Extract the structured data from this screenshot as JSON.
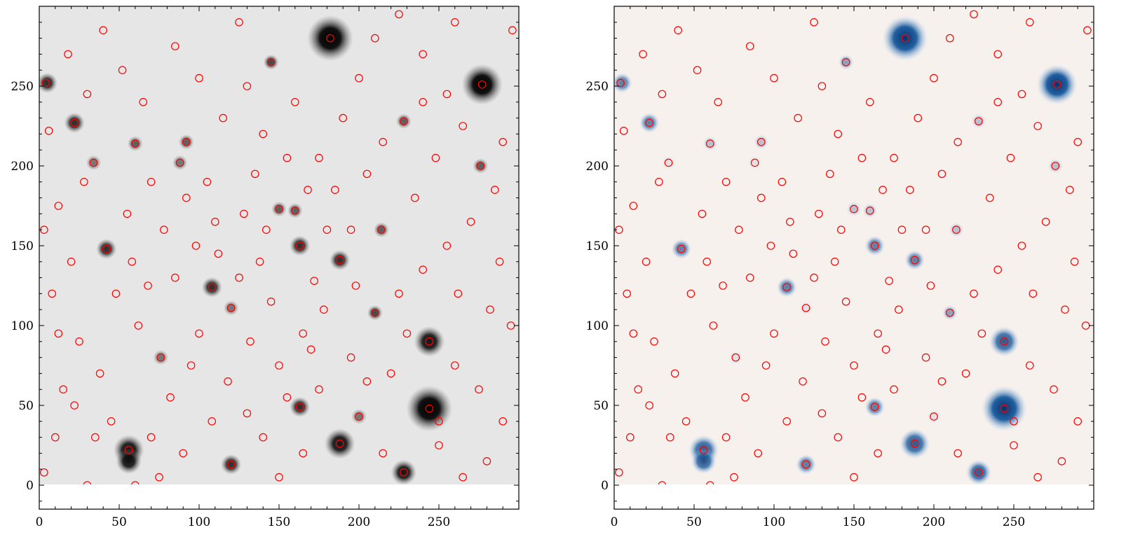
{
  "chart_data": [
    {
      "type": "scatter",
      "panel": "left",
      "background": "image",
      "colormap": "gray_r",
      "xlim": [
        0,
        300
      ],
      "ylim": [
        -15,
        300
      ],
      "xticks": [
        "0",
        "50",
        "100",
        "150",
        "200",
        "250"
      ],
      "yticks": [
        "0",
        "50",
        "100",
        "150",
        "200",
        "250"
      ],
      "marker": "open-circle",
      "marker_color": "#ff0000",
      "grid": false
    },
    {
      "type": "scatter",
      "panel": "right",
      "background": "image",
      "colormap": "RdBu_r-like blue",
      "xlim": [
        0,
        300
      ],
      "ylim": [
        -15,
        300
      ],
      "xticks": [
        "0",
        "50",
        "100",
        "150",
        "200",
        "250"
      ],
      "yticks": [
        "0",
        "50",
        "100",
        "150",
        "200",
        "250"
      ],
      "marker": "open-circle",
      "marker_color": "#ff0000",
      "grid": false
    }
  ],
  "bright_sources": [
    [
      182,
      280,
      1.0,
      9
    ],
    [
      277,
      251,
      1.0,
      8
    ],
    [
      244,
      48,
      1.0,
      9
    ],
    [
      244,
      90,
      0.9,
      6
    ],
    [
      56,
      22,
      0.9,
      6
    ],
    [
      56,
      15,
      0.9,
      5
    ],
    [
      188,
      26,
      0.9,
      6
    ],
    [
      228,
      8,
      0.9,
      5
    ],
    [
      5,
      252,
      0.8,
      4
    ],
    [
      22,
      227,
      0.8,
      4
    ],
    [
      42,
      148,
      0.8,
      4
    ],
    [
      163,
      150,
      0.8,
      4
    ],
    [
      188,
      141,
      0.8,
      4
    ],
    [
      108,
      124,
      0.8,
      4
    ],
    [
      210,
      108,
      0.7,
      3
    ],
    [
      163,
      49,
      0.8,
      4
    ],
    [
      120,
      13,
      0.8,
      4
    ],
    [
      145,
      265,
      0.7,
      3
    ],
    [
      92,
      215,
      0.6,
      3
    ],
    [
      60,
      214,
      0.6,
      3
    ],
    [
      214,
      160,
      0.6,
      3
    ],
    [
      150,
      173,
      0.6,
      3
    ],
    [
      160,
      172,
      0.6,
      3
    ],
    [
      228,
      228,
      0.6,
      3
    ],
    [
      276,
      200,
      0.6,
      3
    ],
    [
      88,
      202,
      0.5,
      3
    ],
    [
      34,
      202,
      0.5,
      3
    ],
    [
      120,
      111,
      0.5,
      3
    ],
    [
      76,
      80,
      0.5,
      3
    ],
    [
      200,
      43,
      0.5,
      3
    ]
  ],
  "sources": [
    [
      4,
      252
    ],
    [
      22,
      227
    ],
    [
      42,
      148
    ],
    [
      56,
      22
    ],
    [
      188,
      26
    ],
    [
      163,
      49
    ],
    [
      120,
      13
    ],
    [
      145,
      265
    ],
    [
      182,
      280
    ],
    [
      277,
      251
    ],
    [
      244,
      48
    ],
    [
      244,
      90
    ],
    [
      228,
      8
    ],
    [
      163,
      150
    ],
    [
      188,
      141
    ],
    [
      108,
      124
    ],
    [
      210,
      108
    ],
    [
      92,
      215
    ],
    [
      60,
      214
    ],
    [
      214,
      160
    ],
    [
      150,
      173
    ],
    [
      160,
      172
    ],
    [
      228,
      228
    ],
    [
      276,
      200
    ],
    [
      88,
      202
    ],
    [
      34,
      202
    ],
    [
      120,
      111
    ],
    [
      76,
      80
    ],
    [
      200,
      43
    ],
    [
      250,
      40
    ],
    [
      3,
      8
    ],
    [
      10,
      30
    ],
    [
      15,
      60
    ],
    [
      25,
      90
    ],
    [
      8,
      120
    ],
    [
      20,
      140
    ],
    [
      12,
      175
    ],
    [
      28,
      190
    ],
    [
      6,
      222
    ],
    [
      30,
      245
    ],
    [
      18,
      270
    ],
    [
      40,
      285
    ],
    [
      52,
      260
    ],
    [
      65,
      240
    ],
    [
      70,
      190
    ],
    [
      55,
      170
    ],
    [
      48,
      120
    ],
    [
      62,
      100
    ],
    [
      38,
      70
    ],
    [
      45,
      40
    ],
    [
      30,
      0
    ],
    [
      70,
      30
    ],
    [
      82,
      55
    ],
    [
      95,
      75
    ],
    [
      100,
      95
    ],
    [
      85,
      130
    ],
    [
      98,
      150
    ],
    [
      110,
      165
    ],
    [
      105,
      190
    ],
    [
      115,
      230
    ],
    [
      100,
      255
    ],
    [
      85,
      275
    ],
    [
      125,
      290
    ],
    [
      130,
      250
    ],
    [
      140,
      220
    ],
    [
      135,
      195
    ],
    [
      128,
      170
    ],
    [
      138,
      140
    ],
    [
      145,
      115
    ],
    [
      132,
      90
    ],
    [
      118,
      65
    ],
    [
      108,
      40
    ],
    [
      140,
      30
    ],
    [
      150,
      5
    ],
    [
      165,
      20
    ],
    [
      175,
      60
    ],
    [
      170,
      85
    ],
    [
      178,
      110
    ],
    [
      172,
      128
    ],
    [
      195,
      160
    ],
    [
      185,
      185
    ],
    [
      175,
      205
    ],
    [
      190,
      230
    ],
    [
      200,
      255
    ],
    [
      210,
      280
    ],
    [
      225,
      295
    ],
    [
      240,
      270
    ],
    [
      255,
      245
    ],
    [
      265,
      225
    ],
    [
      290,
      215
    ],
    [
      285,
      185
    ],
    [
      270,
      165
    ],
    [
      255,
      150
    ],
    [
      240,
      135
    ],
    [
      225,
      120
    ],
    [
      230,
      95
    ],
    [
      260,
      75
    ],
    [
      275,
      60
    ],
    [
      290,
      40
    ],
    [
      280,
      15
    ],
    [
      265,
      5
    ],
    [
      250,
      25
    ],
    [
      215,
      20
    ],
    [
      205,
      65
    ],
    [
      195,
      80
    ],
    [
      220,
      70
    ],
    [
      235,
      180
    ],
    [
      248,
      205
    ],
    [
      262,
      120
    ],
    [
      288,
      140
    ],
    [
      295,
      100
    ],
    [
      282,
      110
    ],
    [
      296,
      285
    ],
    [
      260,
      290
    ],
    [
      240,
      240
    ],
    [
      215,
      215
    ],
    [
      205,
      195
    ],
    [
      160,
      240
    ],
    [
      155,
      205
    ],
    [
      165,
      95
    ],
    [
      150,
      75
    ],
    [
      155,
      55
    ],
    [
      130,
      45
    ],
    [
      90,
      20
    ],
    [
      75,
      5
    ],
    [
      60,
      0
    ],
    [
      35,
      30
    ],
    [
      22,
      50
    ],
    [
      12,
      95
    ],
    [
      3,
      160
    ],
    [
      78,
      160
    ],
    [
      92,
      180
    ],
    [
      68,
      125
    ],
    [
      58,
      140
    ],
    [
      112,
      145
    ],
    [
      125,
      130
    ],
    [
      180,
      160
    ],
    [
      198,
      125
    ],
    [
      142,
      160
    ],
    [
      168,
      185
    ]
  ],
  "colors": {
    "marker": "#ff0000",
    "left_dark": "#000000",
    "right_dark": "#08306b",
    "right_bg": "#f7f1ee"
  }
}
